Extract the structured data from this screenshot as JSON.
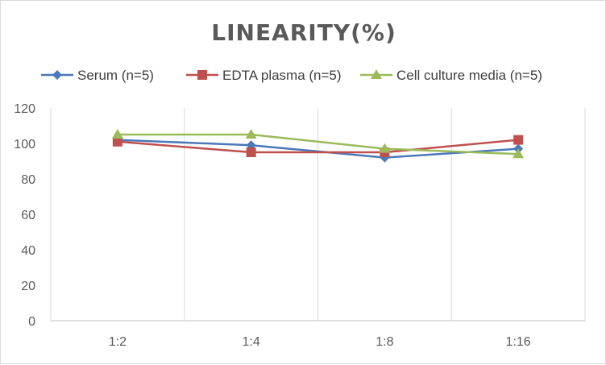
{
  "chart_data": {
    "type": "line",
    "title": "LINEARITY(%)",
    "categories": [
      "1:2",
      "1:4",
      "1:8",
      "1:16"
    ],
    "ylim": [
      0,
      120
    ],
    "yticks": [
      0,
      20,
      40,
      60,
      80,
      100,
      120
    ],
    "grid": "vertical",
    "legend_position": "top",
    "series": [
      {
        "name": "Serum (n=5)",
        "values": [
          102,
          99,
          92,
          97
        ],
        "color": "#4a78b8",
        "marker": "diamond"
      },
      {
        "name": "EDTA plasma (n=5)",
        "values": [
          101,
          95,
          95,
          102
        ],
        "color": "#c0504d",
        "marker": "square"
      },
      {
        "name": "Cell culture media (n=5)",
        "values": [
          105,
          105,
          97,
          94
        ],
        "color": "#9bbb59",
        "marker": "triangle"
      }
    ]
  }
}
